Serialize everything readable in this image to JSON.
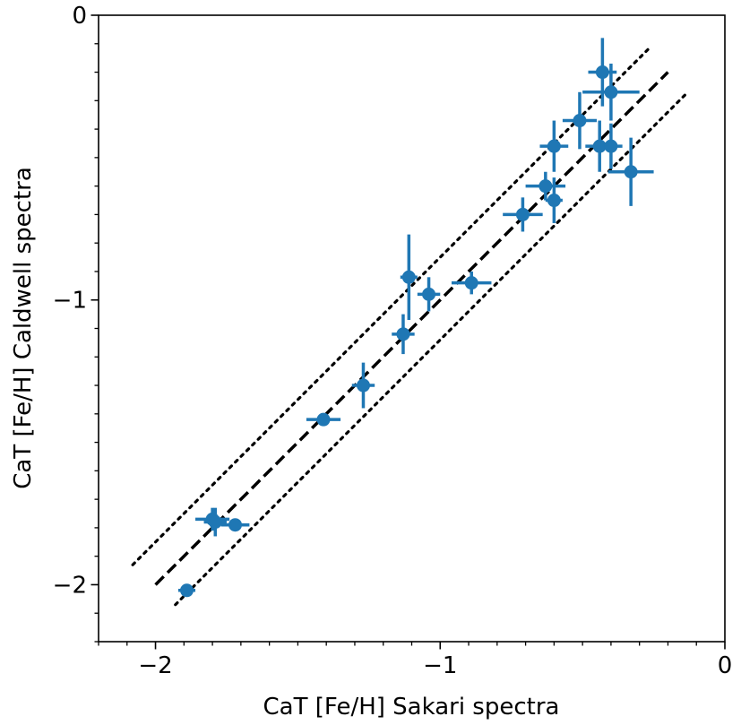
{
  "chart_data": {
    "type": "scatter",
    "title": "",
    "xlabel": "CaT [Fe/H] Sakari spectra",
    "ylabel": "CaT [Fe/H] Caldwell spectra",
    "xlim": [
      -2.2,
      0.0
    ],
    "ylim": [
      -2.2,
      0.0
    ],
    "x_major_ticks": [
      -2,
      -1,
      0
    ],
    "y_major_ticks": [
      -2,
      -1,
      0
    ],
    "x_tick_labels": [
      "−2",
      "−1",
      "0"
    ],
    "y_tick_labels": [
      "−2",
      "−1",
      "0"
    ],
    "x_minor_step": 0.1,
    "y_minor_step": 0.1,
    "grid": false,
    "marker_color": "#1f77b4",
    "line_color": "#000000",
    "reference_lines": [
      {
        "name": "one-to-one",
        "style": "dashed",
        "x": [
          -2.0,
          -0.2
        ],
        "y": [
          -2.0,
          -0.2
        ]
      },
      {
        "name": "upper-bound",
        "style": "dotted",
        "x": [
          -2.08,
          -0.27
        ],
        "y": [
          -1.93,
          -0.12
        ]
      },
      {
        "name": "lower-bound",
        "style": "dotted",
        "x": [
          -1.93,
          -0.13
        ],
        "y": [
          -2.07,
          -0.27
        ]
      }
    ],
    "points": [
      {
        "x": -1.89,
        "y": -2.02,
        "xerr": 0.03,
        "yerr": 0.01
      },
      {
        "x": -1.8,
        "y": -1.77,
        "xerr": 0.06,
        "yerr": 0.04
      },
      {
        "x": -1.79,
        "y": -1.78,
        "xerr": 0.04,
        "yerr": 0.05
      },
      {
        "x": -1.72,
        "y": -1.79,
        "xerr": 0.05,
        "yerr": 0.02
      },
      {
        "x": -1.41,
        "y": -1.42,
        "xerr": 0.06,
        "yerr": 0.02
      },
      {
        "x": -1.27,
        "y": -1.3,
        "xerr": 0.04,
        "yerr": 0.08
      },
      {
        "x": -1.13,
        "y": -1.12,
        "xerr": 0.04,
        "yerr": 0.07
      },
      {
        "x": -1.11,
        "y": -0.92,
        "xerr": 0.03,
        "yerr": 0.15
      },
      {
        "x": -1.04,
        "y": -0.98,
        "xerr": 0.04,
        "yerr": 0.06
      },
      {
        "x": -0.89,
        "y": -0.94,
        "xerr": 0.07,
        "yerr": 0.04
      },
      {
        "x": -0.71,
        "y": -0.7,
        "xerr": 0.07,
        "yerr": 0.06
      },
      {
        "x": -0.63,
        "y": -0.6,
        "xerr": 0.07,
        "yerr": 0.05
      },
      {
        "x": -0.6,
        "y": -0.65,
        "xerr": 0.03,
        "yerr": 0.08
      },
      {
        "x": -0.6,
        "y": -0.46,
        "xerr": 0.05,
        "yerr": 0.09
      },
      {
        "x": -0.51,
        "y": -0.37,
        "xerr": 0.06,
        "yerr": 0.1
      },
      {
        "x": -0.44,
        "y": -0.46,
        "xerr": 0.05,
        "yerr": 0.09
      },
      {
        "x": -0.43,
        "y": -0.2,
        "xerr": 0.05,
        "yerr": 0.12
      },
      {
        "x": -0.4,
        "y": -0.27,
        "xerr": 0.1,
        "yerr": 0.1
      },
      {
        "x": -0.4,
        "y": -0.46,
        "xerr": 0.04,
        "yerr": 0.08
      },
      {
        "x": -0.33,
        "y": -0.55,
        "xerr": 0.08,
        "yerr": 0.12
      }
    ]
  }
}
